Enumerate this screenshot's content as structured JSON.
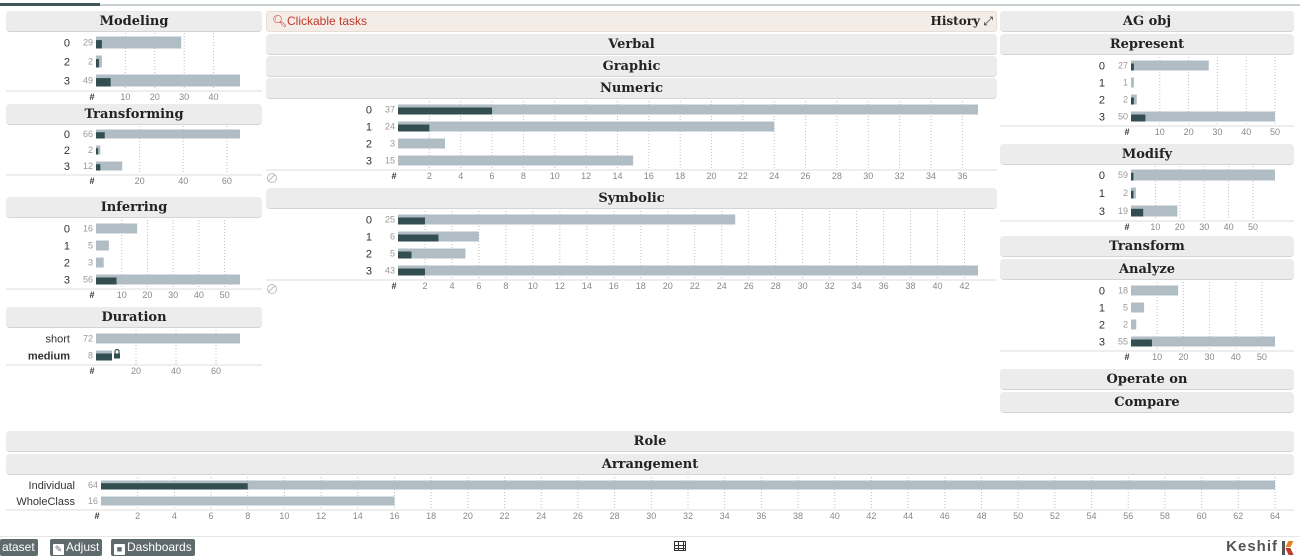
{
  "tasks_bar": {
    "search_label": "Clickable tasks",
    "history_label": "History",
    "expand_icon": "expand-icon",
    "search_icon": "search-icon"
  },
  "colors": {
    "bar": "#b1bdc4",
    "active": "#334e50",
    "header_bg": "#ececec",
    "accent_red": "#c0392b"
  },
  "left": {
    "modeling": {
      "title": "Modeling",
      "rows": [
        {
          "label": "0",
          "count": 29,
          "active": 2
        },
        {
          "label": "2",
          "count": 2,
          "active": 1
        },
        {
          "label": "3",
          "count": 49,
          "active": 5
        }
      ],
      "max": 49,
      "ticks": [
        "10",
        "20",
        "30",
        "40"
      ],
      "hash": "#"
    },
    "transforming": {
      "title": "Transforming",
      "rows": [
        {
          "label": "0",
          "count": 66,
          "active": 4
        },
        {
          "label": "2",
          "count": 2,
          "active": 1
        },
        {
          "label": "3",
          "count": 12,
          "active": 2
        }
      ],
      "max": 66,
      "ticks": [
        "20",
        "40",
        "60"
      ],
      "hash": "#"
    },
    "inferring": {
      "title": "Inferring",
      "rows": [
        {
          "label": "0",
          "count": 16,
          "active": 0
        },
        {
          "label": "1",
          "count": 5,
          "active": 0
        },
        {
          "label": "2",
          "count": 3,
          "active": 0
        },
        {
          "label": "3",
          "count": 56,
          "active": 8
        }
      ],
      "max": 56,
      "ticks": [
        "10",
        "20",
        "30",
        "40",
        "50"
      ],
      "hash": "#"
    },
    "duration": {
      "title": "Duration",
      "rows": [
        {
          "label": "short",
          "count": 72,
          "active": 0
        },
        {
          "label": "medium",
          "count": 8,
          "active": 8,
          "bold": true,
          "lock": true
        }
      ],
      "max": 72,
      "ticks": [
        "20",
        "40",
        "60"
      ],
      "hash": "#"
    }
  },
  "middle": {
    "verbal": {
      "title": "Verbal"
    },
    "graphic": {
      "title": "Graphic"
    },
    "numeric": {
      "title": "Numeric",
      "rows": [
        {
          "label": "0",
          "count": 37,
          "active": 6
        },
        {
          "label": "1",
          "count": 24,
          "active": 2
        },
        {
          "label": "2",
          "count": 3,
          "active": 0
        },
        {
          "label": "3",
          "count": 15,
          "active": 0
        }
      ],
      "max": 37,
      "ticks": [
        "2",
        "4",
        "6",
        "8",
        "10",
        "12",
        "14",
        "16",
        "18",
        "20",
        "22",
        "24",
        "26",
        "28",
        "30",
        "32",
        "34",
        "36"
      ],
      "hash": "#"
    },
    "symbolic": {
      "title": "Symbolic",
      "rows": [
        {
          "label": "0",
          "count": 25,
          "active": 2
        },
        {
          "label": "1",
          "count": 6,
          "active": 3
        },
        {
          "label": "2",
          "count": 5,
          "active": 1
        },
        {
          "label": "3",
          "count": 43,
          "active": 2
        }
      ],
      "max": 43,
      "ticks": [
        "2",
        "4",
        "6",
        "8",
        "10",
        "12",
        "14",
        "16",
        "18",
        "20",
        "22",
        "24",
        "26",
        "28",
        "30",
        "32",
        "34",
        "36",
        "38",
        "40",
        "42"
      ],
      "hash": "#"
    }
  },
  "right": {
    "ag_obj": {
      "title": "AG obj"
    },
    "represent": {
      "title": "Represent",
      "rows": [
        {
          "label": "0",
          "count": 27,
          "active": 1
        },
        {
          "label": "1",
          "count": 1,
          "active": 0
        },
        {
          "label": "2",
          "count": 2,
          "active": 1
        },
        {
          "label": "3",
          "count": 50,
          "active": 5
        }
      ],
      "max": 50,
      "ticks": [
        "10",
        "20",
        "30",
        "40",
        "50"
      ],
      "hash": "#"
    },
    "modify": {
      "title": "Modify",
      "rows": [
        {
          "label": "0",
          "count": 59,
          "active": 1
        },
        {
          "label": "1",
          "count": 2,
          "active": 1
        },
        {
          "label": "3",
          "count": 19,
          "active": 5
        }
      ],
      "max": 59,
      "ticks": [
        "10",
        "20",
        "30",
        "40",
        "50"
      ],
      "hash": "#"
    },
    "transform": {
      "title": "Transform"
    },
    "analyze": {
      "title": "Analyze",
      "rows": [
        {
          "label": "0",
          "count": 18,
          "active": 0
        },
        {
          "label": "1",
          "count": 5,
          "active": 0
        },
        {
          "label": "2",
          "count": 2,
          "active": 0
        },
        {
          "label": "3",
          "count": 55,
          "active": 8
        }
      ],
      "max": 55,
      "ticks": [
        "10",
        "20",
        "30",
        "40",
        "50"
      ],
      "hash": "#"
    },
    "operate_on": {
      "title": "Operate on"
    },
    "compare": {
      "title": "Compare"
    }
  },
  "bottom": {
    "role": {
      "title": "Role"
    },
    "arrangement": {
      "title": "Arrangement",
      "rows": [
        {
          "label": "Individual",
          "count": 64,
          "active": 8
        },
        {
          "label": "WholeClass",
          "count": 16,
          "active": 0
        }
      ],
      "max": 64,
      "ticks": [
        "2",
        "4",
        "6",
        "8",
        "10",
        "12",
        "14",
        "16",
        "18",
        "20",
        "22",
        "24",
        "26",
        "28",
        "30",
        "32",
        "34",
        "36",
        "38",
        "40",
        "42",
        "44",
        "46",
        "48",
        "50",
        "52",
        "54",
        "56",
        "58",
        "60",
        "62",
        "64"
      ],
      "hash": "#"
    }
  },
  "footer": {
    "dataset_label": "ataset",
    "adjust_label": "Adjust",
    "dashboards_label": "Dashboards",
    "brand": "Keshif"
  }
}
